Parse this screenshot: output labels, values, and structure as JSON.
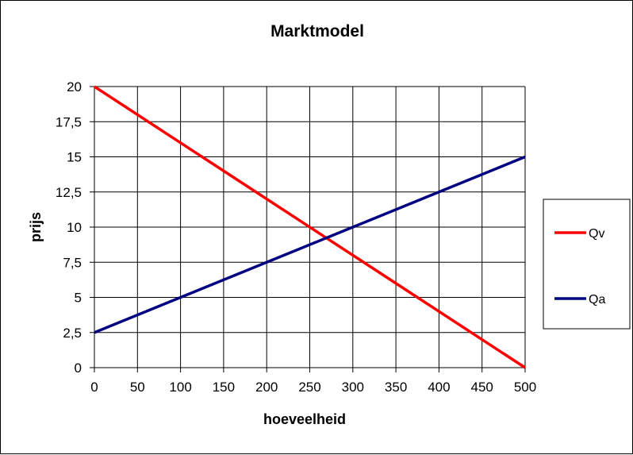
{
  "chart_data": {
    "type": "line",
    "title": "Marktmodel",
    "xlabel": "hoeveelheid",
    "ylabel": "prijs",
    "xlim": [
      0,
      500
    ],
    "ylim": [
      0,
      20
    ],
    "x_ticks": [
      0,
      50,
      100,
      150,
      200,
      250,
      300,
      350,
      400,
      450,
      500
    ],
    "y_ticks": [
      "0",
      "2,5",
      "5",
      "7,5",
      "10",
      "12,5",
      "15",
      "17,5",
      "20"
    ],
    "y_tick_values": [
      0,
      2.5,
      5,
      7.5,
      10,
      12.5,
      15,
      17.5,
      20
    ],
    "grid": true,
    "legend_position": "right",
    "series": [
      {
        "name": "Qv",
        "color": "#ff0000",
        "x": [
          0,
          500
        ],
        "y": [
          20,
          0
        ]
      },
      {
        "name": "Qa",
        "color": "#000080",
        "x": [
          0,
          500
        ],
        "y": [
          2.5,
          15
        ]
      }
    ]
  }
}
